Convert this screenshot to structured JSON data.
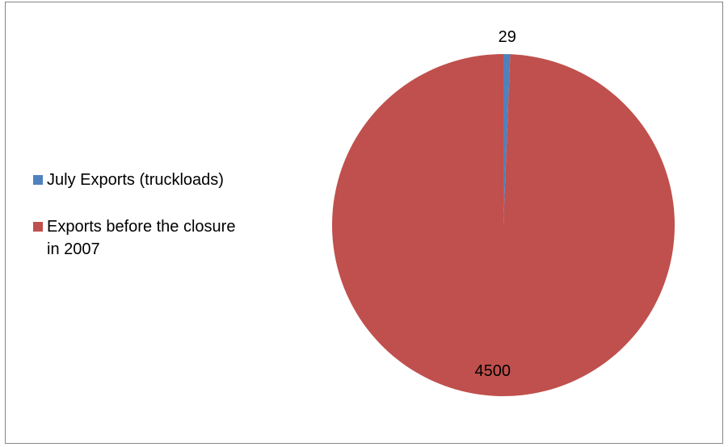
{
  "chart_data": {
    "type": "pie",
    "title": "",
    "slices": [
      {
        "label": "July Exports (truckloads)",
        "value": 29,
        "color": "#4F81BD"
      },
      {
        "label": "Exports before the closure in 2007",
        "value": 4500,
        "color": "#C0504D"
      }
    ],
    "legend_position": "left",
    "data_labels": [
      "29",
      "4500"
    ]
  }
}
